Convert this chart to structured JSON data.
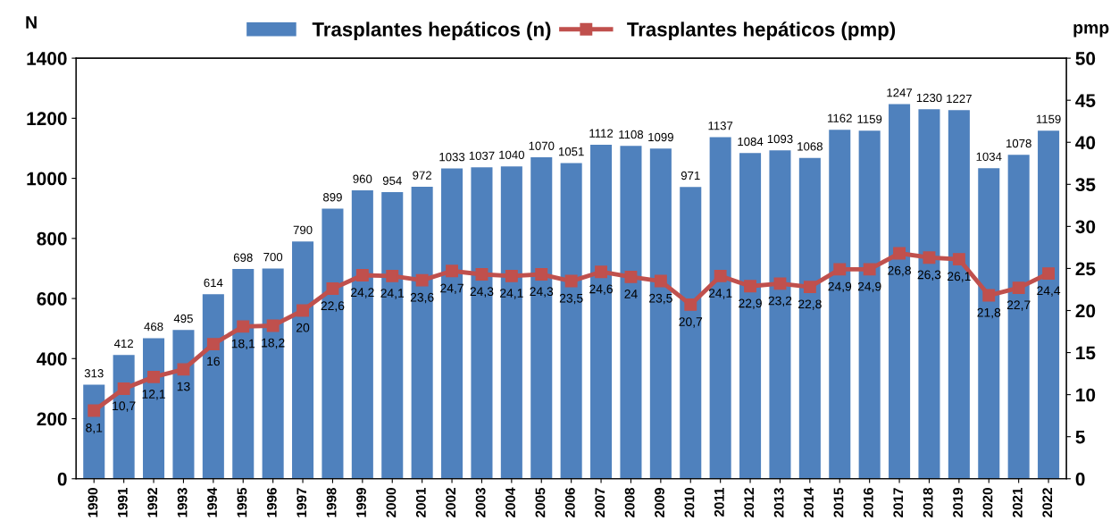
{
  "chart_data": {
    "type": "bar",
    "ylabel": "N",
    "y2label": "pmp",
    "categories": [
      "1990",
      "1991",
      "1992",
      "1993",
      "1994",
      "1995",
      "1996",
      "1997",
      "1998",
      "1999",
      "2000",
      "2001",
      "2002",
      "2003",
      "2004",
      "2005",
      "2006",
      "2007",
      "2008",
      "2009",
      "2010",
      "2011",
      "2012",
      "2013",
      "2014",
      "2015",
      "2016",
      "2017",
      "2018",
      "2019",
      "2020",
      "2021",
      "2022"
    ],
    "series": [
      {
        "name": "Trasplantes hepáticos (n)",
        "color": "#4f81bd",
        "values": [
          313,
          412,
          468,
          495,
          614,
          698,
          700,
          790,
          899,
          960,
          954,
          972,
          1033,
          1037,
          1040,
          1070,
          1051,
          1112,
          1108,
          1099,
          971,
          1137,
          1084,
          1093,
          1068,
          1162,
          1159,
          1247,
          1230,
          1227,
          1034,
          1078,
          1159
        ],
        "value_labels": [
          "313",
          "412",
          "468",
          "495",
          "614",
          "698",
          "700",
          "790",
          "899",
          "960",
          "954",
          "972",
          "1033",
          "1037",
          "1040",
          "1070",
          "1051",
          "1112",
          "1108",
          "1099",
          "971",
          "1137",
          "1084",
          "1093",
          "1068",
          "1162",
          "1159",
          "1247",
          "1230",
          "1227",
          "1034",
          "1078",
          "1159"
        ]
      },
      {
        "name": "Trasplantes hepáticos (pmp)",
        "type": "line",
        "axis": "y2",
        "color": "#c0504d",
        "marker": "square",
        "line_style": "solid",
        "values": [
          8.1,
          10.7,
          12.1,
          13,
          16,
          18.1,
          18.2,
          20,
          22.6,
          24.2,
          24.1,
          23.6,
          24.7,
          24.3,
          24.1,
          24.3,
          23.5,
          24.6,
          24,
          23.5,
          20.7,
          24.1,
          22.9,
          23.2,
          22.8,
          24.9,
          24.9,
          26.8,
          26.3,
          26.1,
          21.8,
          22.7,
          24.4
        ],
        "value_labels": [
          "8,1",
          "10,7",
          "12,1",
          "13",
          "16",
          "18,1",
          "18,2",
          "20",
          "22,6",
          "24,2",
          "24,1",
          "23,6",
          "24,7",
          "24,3",
          "24,1",
          "24,3",
          "23,5",
          "24,6",
          "24",
          "23,5",
          "20,7",
          "24,1",
          "22,9",
          "23,2",
          "22,8",
          "24,9",
          "24,9",
          "26,8",
          "26,3",
          "26,1",
          "21,8",
          "22,7",
          "24,4"
        ]
      }
    ],
    "ylim": [
      0,
      1400
    ],
    "yticks": [
      0,
      200,
      400,
      600,
      800,
      1000,
      1200,
      1400
    ],
    "y2lim": [
      0,
      50
    ],
    "y2ticks": [
      0,
      5,
      10,
      15,
      20,
      25,
      30,
      35,
      40,
      45,
      50
    ],
    "legend": "top",
    "grid": false
  }
}
